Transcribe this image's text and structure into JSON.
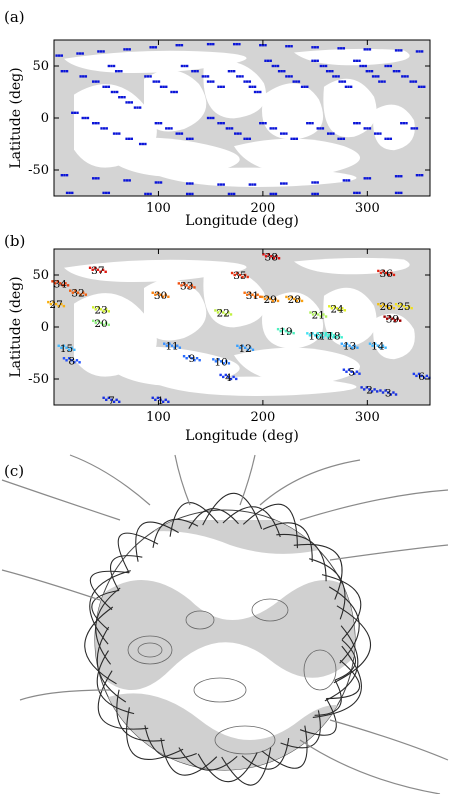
{
  "panels": {
    "a": {
      "label": "(a)"
    },
    "b": {
      "label": "(b)"
    },
    "c": {
      "label": "(c)"
    }
  },
  "colors": {
    "shade": "#d4d4d4",
    "frame": "#000000",
    "a_markers": "#0a14d8",
    "field_dark": "#2a2a2a",
    "field_light": "#8a8a8a"
  },
  "chart_data": [
    {
      "type": "scatter",
      "panel": "a",
      "xlabel": "Longitude (deg)",
      "ylabel": "Latitude (deg)",
      "xlim": [
        0,
        360
      ],
      "ylim": [
        -75,
        75
      ],
      "xticks": [
        100,
        200,
        300
      ],
      "yticks": [
        50,
        0,
        -50
      ],
      "background": "gray polarity-inversion regions",
      "series": [
        {
          "values": [
            [
              5,
              60
            ],
            [
              25,
              62
            ],
            [
              45,
              64
            ],
            [
              70,
              66
            ],
            [
              95,
              68
            ],
            [
              120,
              70
            ],
            [
              150,
              71
            ],
            [
              175,
              71
            ],
            [
              200,
              70
            ],
            [
              225,
              69
            ],
            [
              250,
              68
            ],
            [
              275,
              67
            ],
            [
              300,
              66
            ],
            [
              330,
              65
            ],
            [
              350,
              64
            ],
            [
              10,
              45
            ],
            [
              28,
              40
            ],
            [
              40,
              35
            ],
            [
              50,
              30
            ],
            [
              58,
              25
            ],
            [
              65,
              20
            ],
            [
              72,
              15
            ],
            [
              80,
              10
            ],
            [
              62,
              45
            ],
            [
              55,
              50
            ],
            [
              90,
              40
            ],
            [
              98,
              35
            ],
            [
              105,
              30
            ],
            [
              115,
              25
            ],
            [
              125,
              50
            ],
            [
              135,
              45
            ],
            [
              145,
              40
            ],
            [
              150,
              35
            ],
            [
              160,
              30
            ],
            [
              170,
              45
            ],
            [
              178,
              40
            ],
            [
              185,
              35
            ],
            [
              190,
              30
            ],
            [
              195,
              25
            ],
            [
              205,
              55
            ],
            [
              212,
              50
            ],
            [
              218,
              45
            ],
            [
              225,
              40
            ],
            [
              232,
              35
            ],
            [
              240,
              30
            ],
            [
              250,
              55
            ],
            [
              258,
              50
            ],
            [
              264,
              45
            ],
            [
              270,
              40
            ],
            [
              276,
              35
            ],
            [
              282,
              30
            ],
            [
              290,
              55
            ],
            [
              296,
              50
            ],
            [
              302,
              45
            ],
            [
              308,
              40
            ],
            [
              314,
              35
            ],
            [
              320,
              50
            ],
            [
              328,
              45
            ],
            [
              336,
              40
            ],
            [
              344,
              35
            ],
            [
              352,
              30
            ],
            [
              20,
              5
            ],
            [
              30,
              0
            ],
            [
              40,
              -5
            ],
            [
              48,
              -10
            ],
            [
              60,
              -15
            ],
            [
              72,
              -20
            ],
            [
              85,
              -25
            ],
            [
              100,
              -5
            ],
            [
              110,
              -10
            ],
            [
              120,
              -15
            ],
            [
              130,
              -20
            ],
            [
              150,
              0
            ],
            [
              160,
              -5
            ],
            [
              168,
              -10
            ],
            [
              176,
              -15
            ],
            [
              185,
              -20
            ],
            [
              200,
              -5
            ],
            [
              210,
              -10
            ],
            [
              220,
              -15
            ],
            [
              230,
              -20
            ],
            [
              245,
              -5
            ],
            [
              255,
              -10
            ],
            [
              265,
              -15
            ],
            [
              275,
              -20
            ],
            [
              290,
              -5
            ],
            [
              300,
              -10
            ],
            [
              310,
              -15
            ],
            [
              320,
              -20
            ],
            [
              335,
              -5
            ],
            [
              345,
              -10
            ],
            [
              10,
              -55
            ],
            [
              40,
              -58
            ],
            [
              70,
              -60
            ],
            [
              100,
              -62
            ],
            [
              130,
              -63
            ],
            [
              160,
              -64
            ],
            [
              190,
              -64
            ],
            [
              220,
              -63
            ],
            [
              250,
              -62
            ],
            [
              280,
              -60
            ],
            [
              300,
              -58
            ],
            [
              330,
              -56
            ],
            [
              350,
              -55
            ],
            [
              15,
              -72
            ],
            [
              50,
              -72
            ],
            [
              90,
              -73
            ],
            [
              130,
              -73
            ],
            [
              170,
              -73
            ],
            [
              210,
              -73
            ],
            [
              250,
              -73
            ],
            [
              290,
              -72
            ],
            [
              330,
              -72
            ]
          ]
        }
      ]
    },
    {
      "type": "scatter",
      "panel": "b",
      "xlabel": "Longitude (deg)",
      "ylabel": "Latitude (deg)",
      "xlim": [
        0,
        360
      ],
      "ylim": [
        -75,
        75
      ],
      "xticks": [
        100,
        200,
        300
      ],
      "yticks": [
        50,
        0,
        -50
      ],
      "background": "gray polarity-inversion regions",
      "filaments": [
        {
          "id": "1",
          "lon": 102,
          "lat": -70,
          "color": "#1830e0"
        },
        {
          "id": "2",
          "lon": 302,
          "lat": -60,
          "color": "#1830e0"
        },
        {
          "id": "3",
          "lon": 320,
          "lat": -63,
          "color": "#1830e0"
        },
        {
          "id": "4",
          "lon": 167,
          "lat": -48,
          "color": "#1c3cf0"
        },
        {
          "id": "5",
          "lon": 285,
          "lat": -43,
          "color": "#1c3cf0"
        },
        {
          "id": "6",
          "lon": 352,
          "lat": -47,
          "color": "#1c3cf0"
        },
        {
          "id": "7",
          "lon": 55,
          "lat": -70,
          "color": "#1830e0"
        },
        {
          "id": "8",
          "lon": 17,
          "lat": -32,
          "color": "#2050ff"
        },
        {
          "id": "9",
          "lon": 132,
          "lat": -30,
          "color": "#2a6cff"
        },
        {
          "id": "10",
          "lon": 160,
          "lat": -33,
          "color": "#2a78ff"
        },
        {
          "id": "11",
          "lon": 113,
          "lat": -18,
          "color": "#3a90ff"
        },
        {
          "id": "12",
          "lon": 183,
          "lat": -20,
          "color": "#3aa0ff"
        },
        {
          "id": "13",
          "lon": 283,
          "lat": -18,
          "color": "#3aa8ff"
        },
        {
          "id": "14",
          "lon": 310,
          "lat": -18,
          "color": "#40b8ff"
        },
        {
          "id": "15",
          "lon": 12,
          "lat": -20,
          "color": "#40b8ff"
        },
        {
          "id": "16",
          "lon": 250,
          "lat": -8,
          "color": "#40e0f0"
        },
        {
          "id": "17",
          "lon": 260,
          "lat": -8,
          "color": "#40e8e0"
        },
        {
          "id": "18",
          "lon": 268,
          "lat": -8,
          "color": "#40f0d0"
        },
        {
          "id": "19",
          "lon": 222,
          "lat": -4,
          "color": "#50f0c0"
        },
        {
          "id": "20",
          "lon": 45,
          "lat": 4,
          "color": "#90f080"
        },
        {
          "id": "21",
          "lon": 253,
          "lat": 12,
          "color": "#b0f060"
        },
        {
          "id": "22",
          "lon": 162,
          "lat": 14,
          "color": "#c0f040"
        },
        {
          "id": "23",
          "lon": 45,
          "lat": 17,
          "color": "#d0f030"
        },
        {
          "id": "24",
          "lon": 271,
          "lat": 18,
          "color": "#e0f020"
        },
        {
          "id": "25",
          "lon": 335,
          "lat": 20,
          "color": "#f0e020"
        },
        {
          "id": "26",
          "lon": 318,
          "lat": 20,
          "color": "#f0c010"
        },
        {
          "id": "27",
          "lon": 2,
          "lat": 22,
          "color": "#f8b010"
        },
        {
          "id": "28",
          "lon": 230,
          "lat": 27,
          "color": "#f8a010"
        },
        {
          "id": "29",
          "lon": 207,
          "lat": 27,
          "color": "#f89010"
        },
        {
          "id": "30",
          "lon": 102,
          "lat": 31,
          "color": "#f88010"
        },
        {
          "id": "31",
          "lon": 190,
          "lat": 31,
          "color": "#f87010"
        },
        {
          "id": "32",
          "lon": 23,
          "lat": 33,
          "color": "#f06010"
        },
        {
          "id": "33",
          "lon": 127,
          "lat": 40,
          "color": "#f05010"
        },
        {
          "id": "34",
          "lon": 6,
          "lat": 42,
          "color": "#e84010"
        },
        {
          "id": "35",
          "lon": 178,
          "lat": 50,
          "color": "#e83010"
        },
        {
          "id": "36",
          "lon": 318,
          "lat": 52,
          "color": "#e02010"
        },
        {
          "id": "37",
          "lon": 42,
          "lat": 55,
          "color": "#e01810"
        },
        {
          "id": "38",
          "lon": 208,
          "lat": 68,
          "color": "#d81010"
        },
        {
          "id": "39",
          "lon": 324,
          "lat": 8,
          "color": "#a00000"
        }
      ],
      "labels": [
        "1",
        "2",
        "3",
        "4",
        "5",
        "6",
        "7",
        "8",
        "9",
        "10",
        "11",
        "12",
        "13",
        "14",
        "15",
        "16",
        "17",
        "18",
        "19",
        "20",
        "21",
        "22",
        "23",
        "24",
        "25",
        "26",
        "27",
        "28",
        "29",
        "30",
        "31",
        "32",
        "33",
        "34",
        "35",
        "36",
        "37",
        "38",
        "39"
      ]
    }
  ]
}
